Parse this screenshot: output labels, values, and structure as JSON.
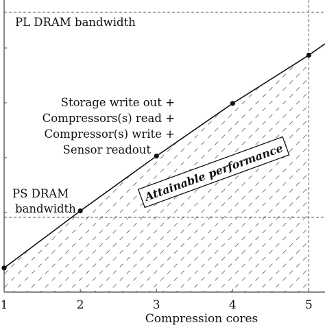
{
  "chart_data": {
    "type": "line",
    "title": "",
    "xlabel": "Compression cores",
    "ylabel": "",
    "x_ticks": [
      1,
      2,
      3,
      4,
      5
    ],
    "xlim": [
      1,
      5.05
    ],
    "ylim": [
      0,
      1
    ],
    "series": [
      {
        "x": [
          1,
          2,
          3,
          4,
          5
        ],
        "y": [
          0.11,
          0.37,
          0.62,
          0.86,
          1.08
        ]
      }
    ],
    "reference_lines": [
      {
        "label": "PL DRAM bandwidth",
        "y": 1.51
      },
      {
        "label": "PS DRAM bandwidth",
        "y": 0.24
      }
    ],
    "annotations": {
      "sum_label": [
        "Storage write out +",
        "Compressors(s) read +",
        "Compressor(s) write +",
        "Sensor readout"
      ],
      "ps_label": [
        "PS DRAM",
        "bandwidth"
      ],
      "region_label": "Attainable performance"
    },
    "grid": false,
    "legend": "none",
    "colors": {
      "line": "#111111",
      "hatch": "#777777",
      "axis": "#111111"
    }
  }
}
